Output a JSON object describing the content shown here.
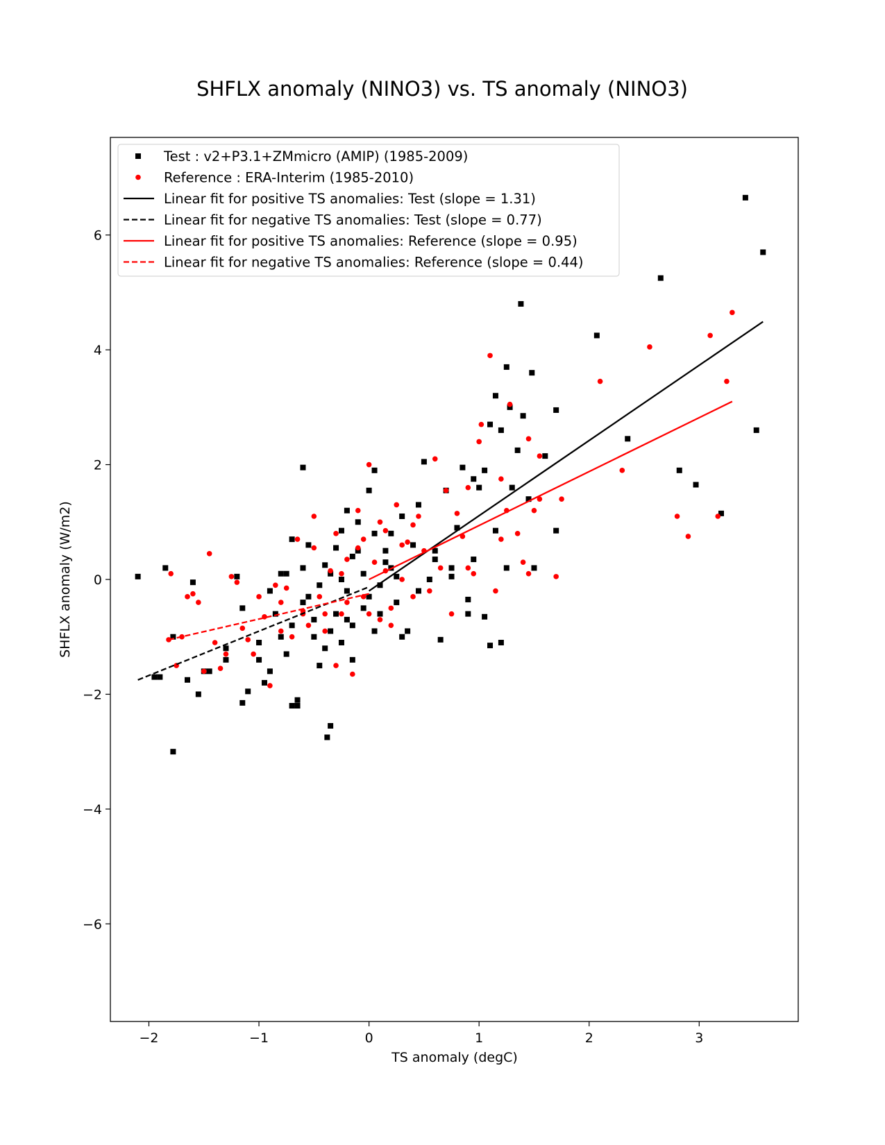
{
  "chart_data": {
    "type": "scatter",
    "title": "SHFLX anomaly (NINO3) vs. TS anomaly (NINO3)",
    "xlabel": "TS anomaly (degC)",
    "ylabel": "SHFLX anomaly (W/m2)",
    "xlim": [
      -2.35,
      3.9
    ],
    "ylim": [
      -7.7,
      7.7
    ],
    "xticks": [
      -2,
      -1,
      0,
      1,
      2,
      3
    ],
    "xtick_labels": [
      "−2",
      "−1",
      "0",
      "1",
      "2",
      "3"
    ],
    "yticks": [
      -6,
      -4,
      -2,
      0,
      2,
      4,
      6
    ],
    "ytick_labels": [
      "−6",
      "−4",
      "−2",
      "0",
      "2",
      "4",
      "6"
    ],
    "grid": false,
    "legend_position": "top-left",
    "series": [
      {
        "name": "Test : v2+P3.1+ZMmicro (AMIP) (1985-2009)",
        "kind": "points",
        "marker": "square",
        "color": "#000000",
        "points": [
          [
            -2.1,
            0.05
          ],
          [
            -1.85,
            0.2
          ],
          [
            -1.78,
            -1.0
          ],
          [
            -1.78,
            -3.0
          ],
          [
            -1.95,
            -1.7
          ],
          [
            -1.9,
            -1.7
          ],
          [
            -1.65,
            -1.75
          ],
          [
            -1.6,
            -0.05
          ],
          [
            -1.55,
            -2.0
          ],
          [
            -1.5,
            -1.6
          ],
          [
            -1.45,
            -1.6
          ],
          [
            -1.3,
            -1.2
          ],
          [
            -1.3,
            -1.4
          ],
          [
            -1.2,
            0.05
          ],
          [
            -1.15,
            -0.5
          ],
          [
            -1.15,
            -2.15
          ],
          [
            -1.1,
            -1.95
          ],
          [
            -1.0,
            -1.1
          ],
          [
            -0.95,
            -1.8
          ],
          [
            -0.9,
            -1.6
          ],
          [
            -0.85,
            -0.6
          ],
          [
            -0.8,
            0.1
          ],
          [
            -0.75,
            -1.3
          ],
          [
            -0.7,
            0.7
          ],
          [
            -0.7,
            -0.8
          ],
          [
            -0.65,
            -2.1
          ],
          [
            -0.7,
            -2.2
          ],
          [
            -0.6,
            0.2
          ],
          [
            -0.55,
            -0.3
          ],
          [
            -0.5,
            -1.0
          ],
          [
            -0.45,
            -1.5
          ],
          [
            -0.4,
            0.25
          ],
          [
            -0.35,
            -0.9
          ],
          [
            -0.3,
            -0.6
          ],
          [
            -0.25,
            0.0
          ],
          [
            -0.25,
            -1.1
          ],
          [
            -0.2,
            -0.7
          ],
          [
            -0.15,
            -1.4
          ],
          [
            -0.65,
            -2.2
          ],
          [
            -0.6,
            1.95
          ],
          [
            -0.45,
            -0.1
          ],
          [
            -0.4,
            -1.2
          ],
          [
            -0.38,
            -2.75
          ],
          [
            -0.35,
            -2.55
          ],
          [
            -0.3,
            0.55
          ],
          [
            -0.25,
            0.85
          ],
          [
            -0.2,
            1.2
          ],
          [
            -0.15,
            0.4
          ],
          [
            -0.1,
            1.0
          ],
          [
            -0.05,
            0.1
          ],
          [
            0.0,
            -0.3
          ],
          [
            0.05,
            0.8
          ],
          [
            0.1,
            -0.6
          ],
          [
            0.15,
            0.5
          ],
          [
            0.2,
            0.2
          ],
          [
            0.25,
            -0.4
          ],
          [
            0.3,
            1.1
          ],
          [
            0.35,
            -0.9
          ],
          [
            0.4,
            0.6
          ],
          [
            0.45,
            1.3
          ],
          [
            0.5,
            2.05
          ],
          [
            0.55,
            0.0
          ],
          [
            0.6,
            0.5
          ],
          [
            0.65,
            -1.05
          ],
          [
            0.7,
            1.55
          ],
          [
            0.75,
            0.2
          ],
          [
            0.8,
            0.9
          ],
          [
            0.85,
            1.95
          ],
          [
            0.9,
            -0.35
          ],
          [
            0.95,
            1.75
          ],
          [
            1.0,
            1.6
          ],
          [
            1.05,
            1.9
          ],
          [
            1.1,
            2.7
          ],
          [
            1.15,
            3.2
          ],
          [
            1.2,
            2.6
          ],
          [
            1.25,
            3.7
          ],
          [
            1.28,
            3.0
          ],
          [
            1.35,
            2.25
          ],
          [
            1.4,
            2.85
          ],
          [
            1.38,
            4.8
          ],
          [
            1.48,
            3.6
          ],
          [
            1.6,
            2.15
          ],
          [
            1.7,
            2.95
          ],
          [
            1.7,
            0.85
          ],
          [
            1.5,
            0.2
          ],
          [
            1.25,
            0.2
          ],
          [
            1.2,
            -1.1
          ],
          [
            1.1,
            -1.15
          ],
          [
            1.05,
            -0.65
          ],
          [
            0.9,
            -0.6
          ],
          [
            0.0,
            1.55
          ],
          [
            0.05,
            1.9
          ],
          [
            -0.1,
            0.5
          ],
          [
            -0.2,
            -0.2
          ],
          [
            0.1,
            -0.1
          ],
          [
            0.2,
            0.8
          ],
          [
            0.3,
            -1.0
          ],
          [
            -0.05,
            -0.5
          ],
          [
            0.15,
            0.3
          ],
          [
            -0.5,
            -0.7
          ],
          [
            -0.6,
            -0.4
          ],
          [
            -0.9,
            -0.2
          ],
          [
            -0.8,
            -1.0
          ],
          [
            -1.0,
            -1.4
          ],
          [
            -0.75,
            0.1
          ],
          [
            -0.55,
            0.6
          ],
          [
            -0.35,
            0.1
          ],
          [
            -0.15,
            -0.8
          ],
          [
            0.05,
            -0.9
          ],
          [
            0.25,
            0.05
          ],
          [
            0.45,
            -0.2
          ],
          [
            0.6,
            0.35
          ],
          [
            0.75,
            0.05
          ],
          [
            0.95,
            0.35
          ],
          [
            1.15,
            0.85
          ],
          [
            1.3,
            1.6
          ],
          [
            1.45,
            1.4
          ],
          [
            2.07,
            4.25
          ],
          [
            2.35,
            2.45
          ],
          [
            2.65,
            5.25
          ],
          [
            2.82,
            1.9
          ],
          [
            2.97,
            1.65
          ],
          [
            3.2,
            1.15
          ],
          [
            3.42,
            6.65
          ],
          [
            3.52,
            2.6
          ],
          [
            3.58,
            5.7
          ]
        ]
      },
      {
        "name": "Reference : ERA-Interim (1985-2010)",
        "kind": "points",
        "marker": "circle",
        "color": "#ff0000",
        "points": [
          [
            -1.8,
            0.1
          ],
          [
            -1.82,
            -1.05
          ],
          [
            -1.75,
            -1.5
          ],
          [
            -1.7,
            -1.0
          ],
          [
            -1.65,
            -0.3
          ],
          [
            -1.6,
            -0.25
          ],
          [
            -1.55,
            -0.4
          ],
          [
            -1.5,
            -1.6
          ],
          [
            -1.45,
            0.45
          ],
          [
            -1.4,
            -1.1
          ],
          [
            -1.35,
            -1.55
          ],
          [
            -1.3,
            -1.3
          ],
          [
            -1.25,
            0.05
          ],
          [
            -1.2,
            -0.05
          ],
          [
            -1.15,
            -0.85
          ],
          [
            -1.1,
            -1.05
          ],
          [
            -1.05,
            -1.3
          ],
          [
            -1.0,
            -0.3
          ],
          [
            -0.95,
            -0.65
          ],
          [
            -0.9,
            -1.85
          ],
          [
            -0.85,
            -0.1
          ],
          [
            -0.8,
            -0.9
          ],
          [
            -0.75,
            -0.15
          ],
          [
            -0.7,
            -1.0
          ],
          [
            -0.65,
            0.7
          ],
          [
            -0.6,
            -0.55
          ],
          [
            -0.55,
            -0.8
          ],
          [
            -0.5,
            0.55
          ],
          [
            -0.45,
            -0.3
          ],
          [
            -0.4,
            -0.9
          ],
          [
            -0.35,
            0.15
          ],
          [
            -0.3,
            -1.5
          ],
          [
            -0.25,
            -0.6
          ],
          [
            -0.2,
            0.35
          ],
          [
            -0.15,
            -1.65
          ],
          [
            -0.1,
            0.55
          ],
          [
            -0.05,
            -0.3
          ],
          [
            0.0,
            2.0
          ],
          [
            0.05,
            0.3
          ],
          [
            0.1,
            -0.7
          ],
          [
            0.15,
            0.85
          ],
          [
            0.2,
            -0.5
          ],
          [
            0.25,
            1.3
          ],
          [
            0.3,
            0.0
          ],
          [
            0.35,
            0.65
          ],
          [
            0.4,
            -0.3
          ],
          [
            0.45,
            1.1
          ],
          [
            0.5,
            0.5
          ],
          [
            0.55,
            -0.2
          ],
          [
            0.6,
            2.1
          ],
          [
            0.65,
            0.2
          ],
          [
            0.7,
            1.55
          ],
          [
            0.75,
            -0.6
          ],
          [
            0.8,
            1.15
          ],
          [
            0.85,
            0.75
          ],
          [
            0.9,
            1.6
          ],
          [
            0.95,
            0.1
          ],
          [
            1.0,
            2.4
          ],
          [
            1.02,
            2.7
          ],
          [
            1.1,
            3.9
          ],
          [
            1.15,
            -0.2
          ],
          [
            1.2,
            1.75
          ],
          [
            1.25,
            1.2
          ],
          [
            1.28,
            3.05
          ],
          [
            1.35,
            0.8
          ],
          [
            1.4,
            0.3
          ],
          [
            1.45,
            2.45
          ],
          [
            1.5,
            1.2
          ],
          [
            1.55,
            2.15
          ],
          [
            1.55,
            1.4
          ],
          [
            1.7,
            0.05
          ],
          [
            1.75,
            1.4
          ],
          [
            1.45,
            0.1
          ],
          [
            1.2,
            0.7
          ],
          [
            0.9,
            0.2
          ],
          [
            -0.5,
            1.1
          ],
          [
            -0.3,
            0.8
          ],
          [
            -0.1,
            1.2
          ],
          [
            0.1,
            1.0
          ],
          [
            0.3,
            0.6
          ],
          [
            -0.2,
            -0.4
          ],
          [
            -0.4,
            -0.6
          ],
          [
            -0.6,
            -0.6
          ],
          [
            -0.8,
            -0.4
          ],
          [
            0.0,
            -0.6
          ],
          [
            0.2,
            -0.8
          ],
          [
            -0.25,
            0.1
          ],
          [
            0.15,
            0.15
          ],
          [
            -0.05,
            0.7
          ],
          [
            0.4,
            0.95
          ],
          [
            2.1,
            3.45
          ],
          [
            2.3,
            1.9
          ],
          [
            2.55,
            4.05
          ],
          [
            2.8,
            1.1
          ],
          [
            2.9,
            0.75
          ],
          [
            3.1,
            4.25
          ],
          [
            3.17,
            1.1
          ],
          [
            3.25,
            3.45
          ],
          [
            3.3,
            4.65
          ]
        ]
      },
      {
        "name": "Linear fit for positive TS anomalies: Test (slope = 1.31)",
        "kind": "line",
        "style": "solid",
        "color": "#000000",
        "points": [
          [
            0.0,
            -0.2
          ],
          [
            3.58,
            4.49
          ]
        ]
      },
      {
        "name": "Linear fit for negative TS anomalies: Test (slope = 0.77)",
        "kind": "line",
        "style": "dashed",
        "color": "#000000",
        "points": [
          [
            -2.1,
            -1.75
          ],
          [
            0.0,
            -0.13
          ]
        ]
      },
      {
        "name": "Linear fit for positive TS anomalies: Reference (slope = 0.95)",
        "kind": "line",
        "style": "solid",
        "color": "#ff0000",
        "points": [
          [
            0.0,
            0.0
          ],
          [
            3.3,
            3.1
          ]
        ]
      },
      {
        "name": "Linear fit for negative TS anomalies: Reference (slope = 0.44)",
        "kind": "line",
        "style": "dashed",
        "color": "#ff0000",
        "points": [
          [
            -1.82,
            -1.05
          ],
          [
            0.0,
            -0.25
          ]
        ]
      }
    ]
  }
}
